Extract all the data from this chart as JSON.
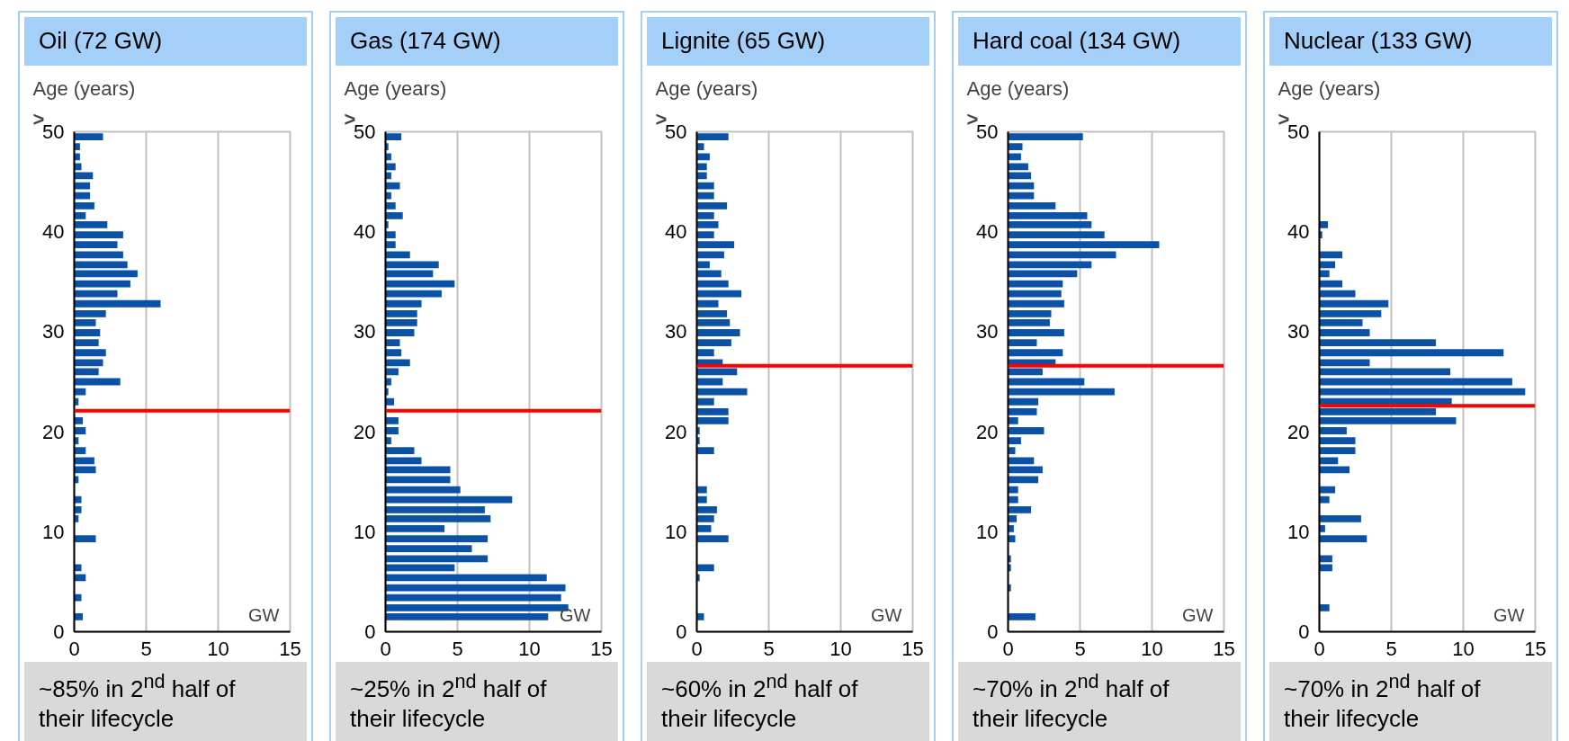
{
  "chart_data": [
    {
      "type": "bar",
      "orientation": "horizontal",
      "title": "Oil (72 GW)",
      "ylabel": "Age (years)",
      "color": "#0b52a6",
      "x": [
        49.5,
        48.5,
        47.5,
        46.5,
        45.6,
        44.6,
        43.6,
        42.6,
        41.6,
        40.7,
        39.7,
        38.7,
        37.7,
        36.7,
        35.8,
        34.8,
        33.8,
        32.8,
        31.8,
        30.9,
        29.9,
        28.9,
        27.9,
        26.9,
        26.0,
        25.0,
        24.0,
        23.0,
        22.0,
        21.1,
        20.1,
        19.1,
        18.1,
        17.1,
        16.2,
        15.2,
        14.2,
        13.2,
        12.2,
        11.3,
        10.3,
        9.3,
        8.3,
        7.3,
        6.4,
        5.4,
        4.4,
        3.4,
        2.4,
        1.5,
        0.5
      ],
      "values": [
        2.0,
        0.4,
        0.4,
        0.5,
        1.3,
        1.1,
        1.1,
        1.4,
        0.8,
        2.3,
        3.4,
        3.0,
        3.4,
        3.7,
        4.4,
        3.9,
        3.0,
        6.0,
        2.2,
        1.5,
        1.8,
        1.7,
        2.2,
        2.0,
        1.7,
        3.2,
        0.8,
        0.3,
        null,
        0.6,
        0.8,
        0.3,
        0.8,
        1.4,
        1.5,
        0.3,
        0,
        0.5,
        0.5,
        0.3,
        0,
        1.5,
        0,
        0,
        0.5,
        0.8,
        0,
        0.5,
        0,
        0.6,
        0
      ],
      "xlim": [
        0,
        15
      ],
      "xticks": [
        0,
        5,
        10,
        15
      ],
      "ylim": [
        0,
        50
      ],
      "yticks": [
        0,
        10,
        20,
        30,
        40,
        50
      ],
      "grid": "x",
      "ref_lines": [
        {
          "axis": "y",
          "value": 22.1,
          "color": "#ff0000"
        }
      ],
      "annotations": [
        ">",
        "GW",
        "~85% in 2$^{nd}$ half of their lifecycle"
      ]
    },
    {
      "type": "bar",
      "orientation": "horizontal",
      "title": "Gas (174 GW)",
      "ylabel": "Age (years)",
      "color": "#0b52a6",
      "x": [
        49.5,
        48.5,
        47.5,
        46.5,
        45.6,
        44.6,
        43.6,
        42.6,
        41.6,
        40.7,
        39.7,
        38.7,
        37.7,
        36.7,
        35.8,
        34.8,
        33.8,
        32.8,
        31.8,
        30.9,
        29.9,
        28.9,
        27.9,
        26.9,
        26.0,
        25.0,
        24.0,
        23.0,
        22.0,
        21.1,
        20.1,
        19.1,
        18.1,
        17.1,
        16.2,
        15.2,
        14.2,
        13.2,
        12.2,
        11.3,
        10.3,
        9.3,
        8.3,
        7.3,
        6.4,
        5.4,
        4.4,
        3.4,
        2.4,
        1.5,
        0.5
      ],
      "values": [
        1.1,
        0.2,
        0.4,
        0.7,
        0.4,
        1.0,
        0.4,
        0.7,
        1.2,
        0.2,
        0.7,
        0.7,
        1.7,
        3.7,
        3.3,
        4.8,
        3.9,
        2.5,
        2.2,
        2.2,
        2.0,
        1.0,
        1.1,
        1.7,
        0.9,
        0.4,
        0.2,
        0.6,
        null,
        0.9,
        0.9,
        0.4,
        2.0,
        2.5,
        4.5,
        4.5,
        5.2,
        8.8,
        6.9,
        7.3,
        4.1,
        7.1,
        6.0,
        7.1,
        4.8,
        11.2,
        12.5,
        12.2,
        12.7,
        11.3,
        0
      ],
      "xlim": [
        0,
        15
      ],
      "xticks": [
        0,
        5,
        10,
        15
      ],
      "ylim": [
        0,
        50
      ],
      "yticks": [
        0,
        10,
        20,
        30,
        40,
        50
      ],
      "grid": "x",
      "ref_lines": [
        {
          "axis": "y",
          "value": 22.1,
          "color": "#ff0000"
        }
      ],
      "annotations": [
        ">",
        "GW",
        "~25% in 2$^{nd}$ half of their lifecycle"
      ]
    },
    {
      "type": "bar",
      "orientation": "horizontal",
      "title": "Lignite (65 GW)",
      "ylabel": "Age (years)",
      "color": "#0b52a6",
      "x": [
        49.5,
        48.5,
        47.5,
        46.5,
        45.6,
        44.6,
        43.6,
        42.6,
        41.6,
        40.7,
        39.7,
        38.7,
        37.7,
        36.7,
        35.8,
        34.8,
        33.8,
        32.8,
        31.8,
        30.9,
        29.9,
        28.9,
        27.9,
        26.9,
        26.0,
        25.0,
        24.0,
        23.0,
        22.0,
        21.1,
        20.1,
        19.1,
        18.1,
        17.1,
        16.2,
        15.2,
        14.2,
        13.2,
        12.2,
        11.3,
        10.3,
        9.3,
        8.3,
        7.3,
        6.4,
        5.4,
        4.4,
        3.4,
        2.4,
        1.5,
        0.5
      ],
      "values": [
        2.2,
        0.5,
        0.9,
        0.7,
        0.7,
        1.2,
        1.2,
        2.1,
        1.2,
        1.5,
        1.2,
        2.6,
        1.9,
        0.9,
        1.7,
        2.2,
        3.1,
        1.5,
        2.1,
        2.3,
        3.0,
        2.4,
        1.2,
        1.8,
        2.8,
        1.8,
        3.5,
        1.2,
        2.2,
        2.2,
        0.2,
        0.2,
        1.2,
        0,
        0,
        0,
        0.7,
        0.7,
        1.4,
        1.2,
        1.0,
        2.2,
        0,
        0,
        1.2,
        0.2,
        0,
        0,
        0,
        0.5,
        0
      ],
      "xlim": [
        0,
        15
      ],
      "xticks": [
        0,
        5,
        10,
        15
      ],
      "ylim": [
        0,
        50
      ],
      "yticks": [
        0,
        10,
        20,
        30,
        40,
        50
      ],
      "grid": "x",
      "ref_lines": [
        {
          "axis": "y",
          "value": 26.6,
          "color": "#ff0000"
        }
      ],
      "annotations": [
        ">",
        "GW",
        "~60% in 2$^{nd}$ half of their lifecycle"
      ]
    },
    {
      "type": "bar",
      "orientation": "horizontal",
      "title": "Hard coal (134 GW)",
      "ylabel": "Age (years)",
      "color": "#0b52a6",
      "x": [
        49.5,
        48.5,
        47.5,
        46.5,
        45.6,
        44.6,
        43.6,
        42.6,
        41.6,
        40.7,
        39.7,
        38.7,
        37.7,
        36.7,
        35.8,
        34.8,
        33.8,
        32.8,
        31.8,
        30.9,
        29.9,
        28.9,
        27.9,
        26.9,
        26.0,
        25.0,
        24.0,
        23.0,
        22.0,
        21.1,
        20.1,
        19.1,
        18.1,
        17.1,
        16.2,
        15.2,
        14.2,
        13.2,
        12.2,
        11.3,
        10.3,
        9.3,
        8.3,
        7.3,
        6.4,
        5.4,
        4.4,
        3.4,
        2.4,
        1.5,
        0.5
      ],
      "values": [
        5.2,
        1.0,
        0.9,
        1.4,
        1.6,
        1.8,
        1.8,
        3.3,
        5.5,
        5.8,
        6.7,
        10.5,
        7.5,
        5.8,
        4.8,
        3.8,
        3.7,
        3.9,
        3.0,
        2.9,
        3.9,
        2.0,
        3.8,
        3.3,
        2.4,
        5.3,
        7.4,
        2.1,
        2.0,
        0.7,
        2.5,
        0.9,
        0.5,
        1.8,
        2.4,
        2.1,
        0.7,
        0.7,
        1.6,
        0.6,
        0.4,
        0.5,
        0,
        0.2,
        0.2,
        0,
        0.2,
        0,
        0,
        1.9,
        0
      ],
      "xlim": [
        0,
        15
      ],
      "xticks": [
        0,
        5,
        10,
        15
      ],
      "ylim": [
        0,
        50
      ],
      "yticks": [
        0,
        10,
        20,
        30,
        40,
        50
      ],
      "grid": "x",
      "ref_lines": [
        {
          "axis": "y",
          "value": 26.6,
          "color": "#ff0000"
        }
      ],
      "annotations": [
        ">",
        "GW",
        "~70% in 2$^{nd}$ half of their lifecycle"
      ]
    },
    {
      "type": "bar",
      "orientation": "horizontal",
      "title": "Nuclear (133 GW)",
      "ylabel": "Age (years)",
      "color": "#0b52a6",
      "x": [
        49.5,
        48.5,
        47.5,
        46.5,
        45.6,
        44.6,
        43.6,
        42.6,
        41.6,
        40.7,
        39.7,
        38.7,
        37.7,
        36.7,
        35.8,
        34.8,
        33.8,
        32.8,
        31.8,
        30.9,
        29.9,
        28.9,
        27.9,
        26.9,
        26.0,
        25.0,
        24.0,
        23.0,
        22.0,
        21.1,
        20.1,
        19.1,
        18.1,
        17.1,
        16.2,
        15.2,
        14.2,
        13.2,
        12.2,
        11.3,
        10.3,
        9.3,
        8.3,
        7.3,
        6.4,
        5.4,
        4.4,
        3.4,
        2.4,
        1.5,
        0.5
      ],
      "values": [
        0,
        0,
        0,
        0,
        0,
        0,
        0,
        0,
        0,
        0.6,
        0.2,
        0,
        1.6,
        1.1,
        0.7,
        1.6,
        2.5,
        4.8,
        4.3,
        3.0,
        3.5,
        8.1,
        12.8,
        3.5,
        9.1,
        13.4,
        14.3,
        9.2,
        8.1,
        9.5,
        1.9,
        2.5,
        2.5,
        1.3,
        2.1,
        0,
        1.1,
        0.7,
        0,
        2.9,
        0.4,
        3.3,
        0,
        0.9,
        0.9,
        0,
        0,
        0,
        0.7,
        0,
        0
      ],
      "xlim": [
        0,
        15
      ],
      "xticks": [
        0,
        5,
        10,
        15
      ],
      "ylim": [
        0,
        50
      ],
      "yticks": [
        0,
        10,
        20,
        30,
        40,
        50
      ],
      "grid": "x",
      "ref_lines": [
        {
          "axis": "y",
          "value": 22.6,
          "color": "#ff0000"
        }
      ],
      "annotations": [
        ">",
        "GW",
        "~70% in 2$^{nd}$ half of their lifecycle"
      ]
    }
  ]
}
